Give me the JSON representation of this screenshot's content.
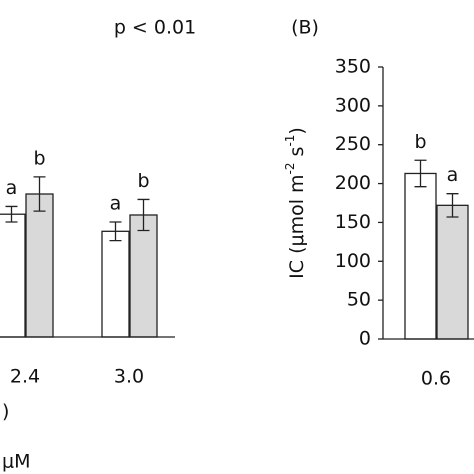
{
  "chart_data": [
    {
      "type": "bar",
      "annotations": [
        "p < 0.01",
        ")",
        "μM"
      ],
      "categories": [
        "2.4",
        "3.0"
      ],
      "ylim": [
        0,
        350
      ],
      "series": [
        {
          "color": "#ffffff",
          "values": [
            158,
            136
          ],
          "errors": [
            10,
            12
          ],
          "letters": [
            "a",
            "a"
          ]
        },
        {
          "color": "#d9d9d9",
          "values": [
            184,
            157
          ],
          "errors": [
            22,
            20
          ],
          "letters": [
            "b",
            "b"
          ]
        }
      ]
    },
    {
      "type": "bar",
      "title": "(B)",
      "ylabel": [
        "IC (μmol m",
        "-2",
        " s",
        "-1",
        ")"
      ],
      "categories": [
        "0.6"
      ],
      "ylim": [
        0,
        350
      ],
      "yticks": [
        0,
        50,
        100,
        150,
        200,
        250,
        300,
        350
      ],
      "series": [
        {
          "color": "#ffffff",
          "values": [
            213
          ],
          "errors": [
            17
          ],
          "letters": [
            "b"
          ]
        },
        {
          "color": "#d9d9d9",
          "values": [
            172
          ],
          "errors": [
            15
          ],
          "letters": [
            "a"
          ]
        }
      ]
    }
  ]
}
